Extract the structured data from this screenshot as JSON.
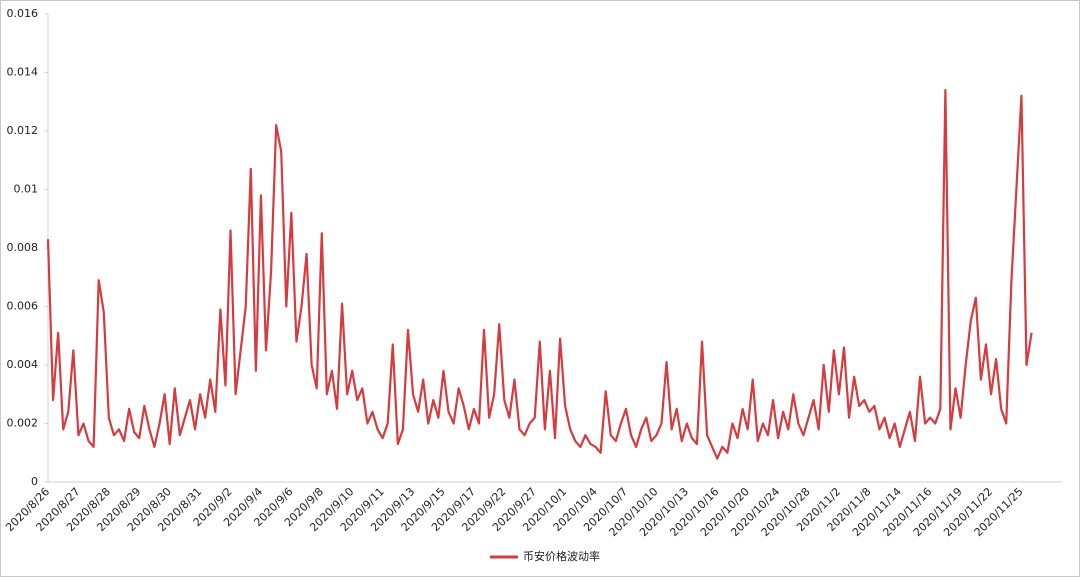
{
  "chart_data": {
    "type": "line",
    "categories": [
      "2020/8/26",
      null,
      null,
      null,
      null,
      null,
      "2020/8/27",
      null,
      null,
      null,
      null,
      null,
      "2020/8/28",
      null,
      null,
      null,
      null,
      null,
      "2020/8/29",
      null,
      null,
      null,
      null,
      null,
      "2020/8/30",
      null,
      null,
      null,
      null,
      null,
      "2020/8/31",
      null,
      null,
      null,
      null,
      null,
      "2020/9/2",
      null,
      null,
      null,
      null,
      null,
      "2020/9/4",
      null,
      null,
      null,
      null,
      null,
      "2020/9/6",
      null,
      null,
      null,
      null,
      null,
      "2020/9/8",
      null,
      null,
      null,
      null,
      null,
      "2020/9/10",
      null,
      null,
      null,
      null,
      null,
      "2020/9/11",
      null,
      null,
      null,
      null,
      null,
      "2020/9/13",
      null,
      null,
      null,
      null,
      null,
      "2020/9/15",
      null,
      null,
      null,
      null,
      null,
      "2020/9/17",
      null,
      null,
      null,
      null,
      null,
      "2020/9/22",
      null,
      null,
      null,
      null,
      null,
      "2020/9/27",
      null,
      null,
      null,
      null,
      null,
      "2020/10/1",
      null,
      null,
      null,
      null,
      null,
      "2020/10/4",
      null,
      null,
      null,
      null,
      null,
      "2020/10/7",
      null,
      null,
      null,
      null,
      null,
      "2020/10/10",
      null,
      null,
      null,
      null,
      null,
      "2020/10/13",
      null,
      null,
      null,
      null,
      null,
      "2020/10/16",
      null,
      null,
      null,
      null,
      null,
      "2020/10/20",
      null,
      null,
      null,
      null,
      null,
      "2020/10/24",
      null,
      null,
      null,
      null,
      null,
      "2020/10/28",
      null,
      null,
      null,
      null,
      null,
      "2020/11/2",
      null,
      null,
      null,
      null,
      null,
      "2020/11/8",
      null,
      null,
      null,
      null,
      null,
      "2020/11/14",
      null,
      null,
      null,
      null,
      null,
      "2020/11/16",
      null,
      null,
      null,
      null,
      null,
      "2020/11/19",
      null,
      null,
      null,
      null,
      null,
      "2020/11/22",
      null,
      null,
      null,
      null,
      null,
      "2020/11/25",
      null,
      null
    ],
    "series": [
      {
        "name": "币安价格波动率",
        "color": "#d63b3f",
        "values": [
          0.0083,
          0.0028,
          0.0051,
          0.0018,
          0.0024,
          0.0045,
          0.0016,
          0.002,
          0.0014,
          0.0012,
          0.0069,
          0.0058,
          0.0022,
          0.0016,
          0.0018,
          0.0014,
          0.0025,
          0.0017,
          0.0015,
          0.0026,
          0.0018,
          0.0012,
          0.002,
          0.003,
          0.0013,
          0.0032,
          0.0016,
          0.0022,
          0.0028,
          0.0018,
          0.003,
          0.0022,
          0.0035,
          0.0024,
          0.0059,
          0.0033,
          0.0086,
          0.003,
          0.0045,
          0.006,
          0.0107,
          0.0038,
          0.0098,
          0.0045,
          0.0072,
          0.0122,
          0.0113,
          0.006,
          0.0092,
          0.0048,
          0.006,
          0.0078,
          0.004,
          0.0032,
          0.0085,
          0.003,
          0.0038,
          0.0025,
          0.0061,
          0.003,
          0.0038,
          0.0028,
          0.0032,
          0.002,
          0.0024,
          0.0018,
          0.0015,
          0.002,
          0.0047,
          0.0013,
          0.0018,
          0.0052,
          0.003,
          0.0024,
          0.0035,
          0.002,
          0.0028,
          0.0022,
          0.0038,
          0.0024,
          0.002,
          0.0032,
          0.0026,
          0.0018,
          0.0025,
          0.002,
          0.0052,
          0.0022,
          0.003,
          0.0054,
          0.0028,
          0.0022,
          0.0035,
          0.0018,
          0.0016,
          0.002,
          0.0022,
          0.0048,
          0.0018,
          0.0038,
          0.0015,
          0.0049,
          0.0026,
          0.0018,
          0.0014,
          0.0012,
          0.0016,
          0.0013,
          0.0012,
          0.001,
          0.0031,
          0.0016,
          0.0014,
          0.002,
          0.0025,
          0.0016,
          0.0012,
          0.0018,
          0.0022,
          0.0014,
          0.0016,
          0.002,
          0.0041,
          0.0018,
          0.0025,
          0.0014,
          0.002,
          0.0015,
          0.0013,
          0.0048,
          0.0016,
          0.0012,
          0.0008,
          0.0012,
          0.001,
          0.002,
          0.0015,
          0.0025,
          0.0018,
          0.0035,
          0.0014,
          0.002,
          0.0016,
          0.0028,
          0.0015,
          0.0024,
          0.0018,
          0.003,
          0.002,
          0.0016,
          0.0022,
          0.0028,
          0.0018,
          0.004,
          0.0024,
          0.0045,
          0.003,
          0.0046,
          0.0022,
          0.0036,
          0.0026,
          0.0028,
          0.0024,
          0.0026,
          0.0018,
          0.0022,
          0.0015,
          0.002,
          0.0012,
          0.0018,
          0.0024,
          0.0014,
          0.0036,
          0.002,
          0.0022,
          0.002,
          0.0025,
          0.0134,
          0.0018,
          0.0032,
          0.0022,
          0.004,
          0.0055,
          0.0063,
          0.0035,
          0.0047,
          0.003,
          0.0042,
          0.0025,
          0.002,
          0.0068,
          0.01,
          0.0132,
          0.004,
          0.0051
        ]
      }
    ],
    "ylim": [
      0,
      0.016
    ],
    "yticks": [
      0,
      0.002,
      0.004,
      0.006,
      0.008,
      0.01,
      0.012,
      0.014,
      0.016
    ],
    "legend": "bottom",
    "grid": false
  }
}
